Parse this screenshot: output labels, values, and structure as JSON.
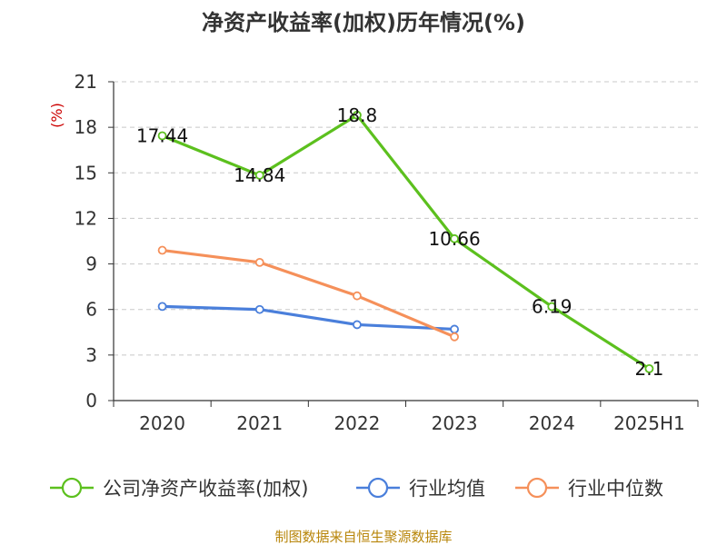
{
  "chart_data": {
    "type": "line",
    "title": "净资产收益率(加权)历年情况(%)",
    "ylabel": "(%)",
    "categories": [
      "2020",
      "2021",
      "2022",
      "2023",
      "2024",
      "2025H1"
    ],
    "ylim": [
      0,
      21
    ],
    "yticks": [
      "0",
      "3",
      "6",
      "9",
      "12",
      "15",
      "18",
      "21"
    ],
    "grid": true,
    "legend_position": "bottom",
    "series": [
      {
        "name": "公司净资产收益率(加权)",
        "color": "#5cc01e",
        "values": [
          17.44,
          14.84,
          18.8,
          10.66,
          6.19,
          2.1
        ],
        "labels": [
          "17.44",
          "14.84",
          "18.8",
          "10.66",
          "6.19",
          "2.1"
        ]
      },
      {
        "name": "行业均值",
        "color": "#4a7fdb",
        "values": [
          6.2,
          6.0,
          5.0,
          4.7,
          null,
          null
        ]
      },
      {
        "name": "行业中位数",
        "color": "#f5905a",
        "values": [
          9.9,
          9.1,
          6.9,
          4.2,
          null,
          null
        ]
      }
    ]
  },
  "source": "制图数据来自恒生聚源数据库"
}
